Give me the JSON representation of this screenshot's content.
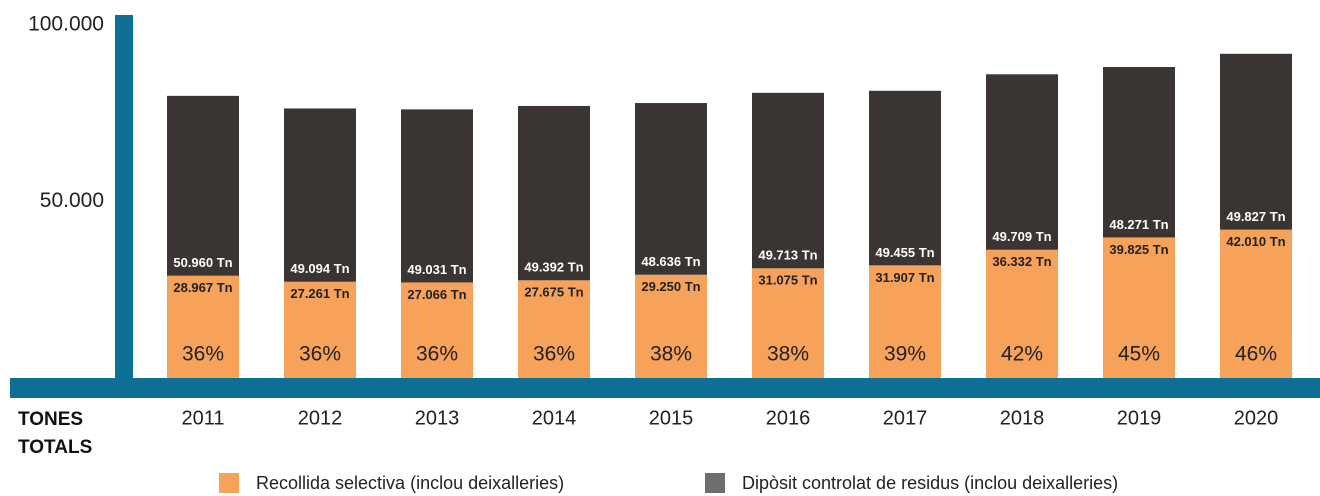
{
  "chart_data": {
    "type": "stacked_bar",
    "categories": [
      "2011",
      "2012",
      "2013",
      "2014",
      "2015",
      "2016",
      "2017",
      "2018",
      "2019",
      "2020"
    ],
    "x_label": "TONES TOTALS",
    "series": [
      {
        "name": "Recollida selectiva (inclou deixalleries)",
        "color": "#f7a25a",
        "values": [
          28967,
          27261,
          27066,
          27675,
          29250,
          31075,
          31907,
          36332,
          39825,
          42010
        ],
        "value_labels": [
          "28.967 Tn",
          "27.261 Tn",
          "27.066 Tn",
          "27.675 Tn",
          "29.250 Tn",
          "31.075 Tn",
          "31.907 Tn",
          "36.332 Tn",
          "39.825 Tn",
          "42.010 Tn"
        ]
      },
      {
        "name": "Dipòsit controlat de residus (inclou deixalleries)",
        "color": "#3a3532",
        "values": [
          50960,
          49094,
          49031,
          49392,
          48636,
          49713,
          49455,
          49709,
          48271,
          49827
        ],
        "value_labels": [
          "50.960 Tn",
          "49.094 Tn",
          "49.031 Tn",
          "49.392 Tn",
          "48.636 Tn",
          "49.713 Tn",
          "49.455 Tn",
          "49.709 Tn",
          "48.271 Tn",
          "49.827 Tn"
        ]
      }
    ],
    "shares": [
      36,
      36,
      36,
      36,
      38,
      38,
      39,
      42,
      45,
      46
    ],
    "share_labels": [
      "36%",
      "36%",
      "36%",
      "36%",
      "38%",
      "38%",
      "39%",
      "42%",
      "45%",
      "46%"
    ],
    "ylim": [
      0,
      100000
    ],
    "yticks": [
      {
        "value": 50000,
        "label": "50.000"
      },
      {
        "value": 100000,
        "label": "100.000"
      }
    ],
    "axis_color": "#0e6f94"
  }
}
